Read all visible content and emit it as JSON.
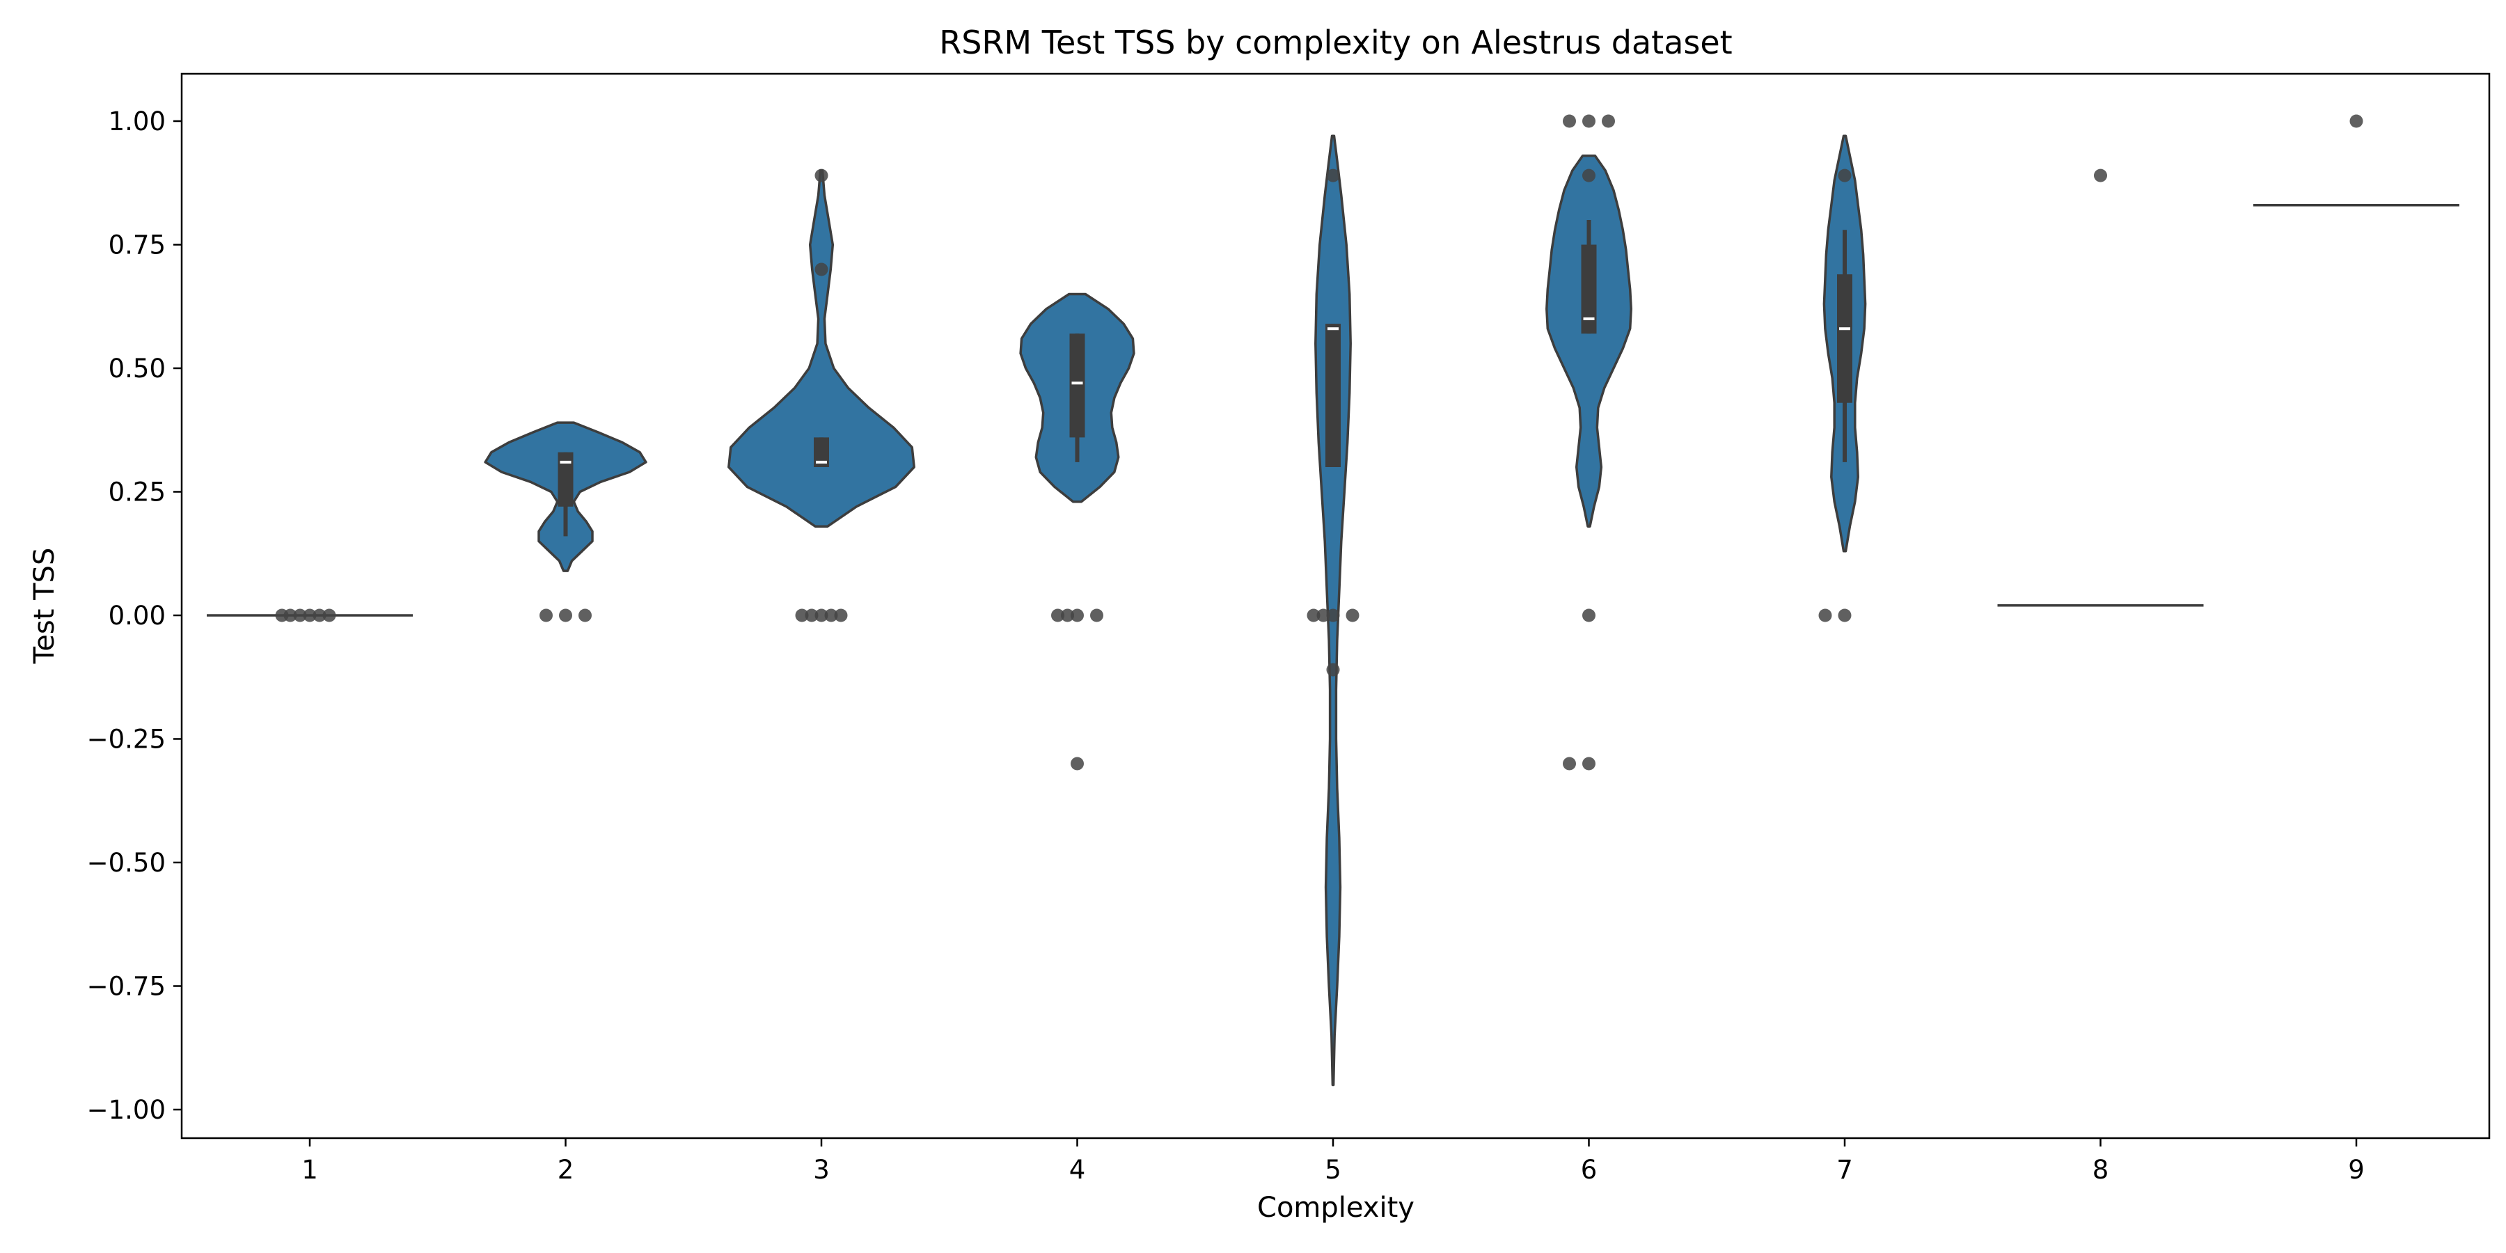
{
  "chart_data": {
    "type": "violin",
    "title": "RSRM Test TSS by complexity on Alestrus dataset",
    "xlabel": "Complexity",
    "ylabel": "Test TSS",
    "ylim": [
      -1.05,
      1.1
    ],
    "yticks": [
      1.0,
      0.75,
      0.5,
      0.25,
      0.0,
      -0.25,
      -0.5,
      -0.75,
      -1.0
    ],
    "ytick_labels": [
      "1.00",
      "0.75",
      "0.50",
      "0.25",
      "0.00",
      "−0.25",
      "−0.50",
      "−0.75",
      "−1.00"
    ],
    "categories": [
      "1",
      "2",
      "3",
      "4",
      "5",
      "6",
      "7",
      "8",
      "9"
    ],
    "grid": false,
    "colors": {
      "violin": "#3274a1",
      "outline": "#3d3d3d",
      "box": "#3d3d3d",
      "median": "#ffffff",
      "point": "#444444"
    },
    "groups": [
      {
        "category": "1",
        "flat": 0.0,
        "points": [
          0.0,
          0.0,
          0.0,
          0.0,
          0.0,
          0.0
        ]
      },
      {
        "category": "2",
        "range": [
          0.09,
          0.39
        ],
        "shape": [
          [
            0.09,
            0.02
          ],
          [
            0.11,
            0.06
          ],
          [
            0.13,
            0.16
          ],
          [
            0.15,
            0.26
          ],
          [
            0.17,
            0.26
          ],
          [
            0.19,
            0.2
          ],
          [
            0.21,
            0.12
          ],
          [
            0.23,
            0.08
          ],
          [
            0.25,
            0.14
          ],
          [
            0.27,
            0.34
          ],
          [
            0.29,
            0.62
          ],
          [
            0.31,
            0.78
          ],
          [
            0.33,
            0.72
          ],
          [
            0.35,
            0.55
          ],
          [
            0.37,
            0.32
          ],
          [
            0.39,
            0.08
          ]
        ],
        "box": [
          0.22,
          0.33
        ],
        "whisker": [
          0.16,
          0.33
        ],
        "median": 0.31,
        "points": [
          0.0,
          0.0,
          0.0
        ]
      },
      {
        "category": "3",
        "range": [
          0.18,
          0.9
        ],
        "shape": [
          [
            0.18,
            0.06
          ],
          [
            0.22,
            0.34
          ],
          [
            0.26,
            0.72
          ],
          [
            0.3,
            0.9
          ],
          [
            0.34,
            0.88
          ],
          [
            0.38,
            0.7
          ],
          [
            0.42,
            0.46
          ],
          [
            0.46,
            0.26
          ],
          [
            0.5,
            0.12
          ],
          [
            0.55,
            0.04
          ],
          [
            0.6,
            0.03
          ],
          [
            0.65,
            0.06
          ],
          [
            0.7,
            0.09
          ],
          [
            0.75,
            0.11
          ],
          [
            0.8,
            0.07
          ],
          [
            0.85,
            0.03
          ],
          [
            0.9,
            0.01
          ]
        ],
        "box": [
          0.3,
          0.36
        ],
        "whisker": [
          0.3,
          0.36
        ],
        "median": 0.31,
        "points": [
          0.89,
          0.7,
          0.0,
          0.0,
          0.0,
          0.0,
          0.0
        ]
      },
      {
        "category": "4",
        "range": [
          0.23,
          0.65
        ],
        "shape": [
          [
            0.23,
            0.04
          ],
          [
            0.26,
            0.22
          ],
          [
            0.29,
            0.36
          ],
          [
            0.32,
            0.4
          ],
          [
            0.35,
            0.38
          ],
          [
            0.38,
            0.34
          ],
          [
            0.41,
            0.33
          ],
          [
            0.44,
            0.36
          ],
          [
            0.47,
            0.42
          ],
          [
            0.5,
            0.5
          ],
          [
            0.53,
            0.55
          ],
          [
            0.56,
            0.54
          ],
          [
            0.59,
            0.45
          ],
          [
            0.62,
            0.3
          ],
          [
            0.65,
            0.08
          ]
        ],
        "box": [
          0.36,
          0.57
        ],
        "whisker": [
          0.31,
          0.57
        ],
        "median": 0.47,
        "points": [
          0.0,
          0.0,
          0.0,
          0.0,
          -0.3
        ]
      },
      {
        "category": "5",
        "range": [
          -0.95,
          0.97
        ],
        "shape": [
          [
            -0.95,
            0.004
          ],
          [
            -0.85,
            0.015
          ],
          [
            -0.75,
            0.04
          ],
          [
            -0.65,
            0.06
          ],
          [
            -0.55,
            0.07
          ],
          [
            -0.45,
            0.06
          ],
          [
            -0.35,
            0.04
          ],
          [
            -0.25,
            0.03
          ],
          [
            -0.15,
            0.03
          ],
          [
            -0.05,
            0.04
          ],
          [
            0.05,
            0.06
          ],
          [
            0.15,
            0.08
          ],
          [
            0.25,
            0.11
          ],
          [
            0.35,
            0.14
          ],
          [
            0.45,
            0.16
          ],
          [
            0.55,
            0.17
          ],
          [
            0.65,
            0.16
          ],
          [
            0.75,
            0.13
          ],
          [
            0.85,
            0.08
          ],
          [
            0.92,
            0.04
          ],
          [
            0.97,
            0.01
          ]
        ],
        "box": [
          0.3,
          0.59
        ],
        "whisker": [
          0.3,
          0.59
        ],
        "median": 0.58,
        "points": [
          0.89,
          0.0,
          0.0,
          0.0,
          0.0,
          -0.11
        ]
      },
      {
        "category": "6",
        "range": [
          0.18,
          0.93
        ],
        "shape": [
          [
            0.18,
            0.01
          ],
          [
            0.22,
            0.05
          ],
          [
            0.26,
            0.1
          ],
          [
            0.3,
            0.12
          ],
          [
            0.34,
            0.1
          ],
          [
            0.38,
            0.08
          ],
          [
            0.42,
            0.09
          ],
          [
            0.46,
            0.15
          ],
          [
            0.5,
            0.24
          ],
          [
            0.54,
            0.33
          ],
          [
            0.58,
            0.4
          ],
          [
            0.62,
            0.41
          ],
          [
            0.66,
            0.4
          ],
          [
            0.7,
            0.38
          ],
          [
            0.74,
            0.36
          ],
          [
            0.78,
            0.33
          ],
          [
            0.82,
            0.29
          ],
          [
            0.86,
            0.24
          ],
          [
            0.9,
            0.16
          ],
          [
            0.93,
            0.06
          ]
        ],
        "box": [
          0.57,
          0.75
        ],
        "whisker": [
          0.57,
          0.8
        ],
        "median": 0.6,
        "points": [
          1.0,
          1.0,
          1.0,
          0.89,
          0.0,
          -0.3,
          -0.3
        ]
      },
      {
        "category": "7",
        "range": [
          0.13,
          0.97
        ],
        "shape": [
          [
            0.13,
            0.01
          ],
          [
            0.18,
            0.05
          ],
          [
            0.23,
            0.1
          ],
          [
            0.28,
            0.13
          ],
          [
            0.33,
            0.12
          ],
          [
            0.38,
            0.1
          ],
          [
            0.43,
            0.1
          ],
          [
            0.48,
            0.12
          ],
          [
            0.53,
            0.16
          ],
          [
            0.58,
            0.19
          ],
          [
            0.63,
            0.2
          ],
          [
            0.68,
            0.19
          ],
          [
            0.73,
            0.18
          ],
          [
            0.78,
            0.16
          ],
          [
            0.83,
            0.13
          ],
          [
            0.88,
            0.1
          ],
          [
            0.93,
            0.05
          ],
          [
            0.97,
            0.01
          ]
        ],
        "box": [
          0.43,
          0.69
        ],
        "whisker": [
          0.31,
          0.78
        ],
        "median": 0.58,
        "points": [
          0.89,
          0.0,
          0.0
        ]
      },
      {
        "category": "8",
        "flat": 0.02,
        "points": [
          0.89
        ]
      },
      {
        "category": "9",
        "flat": 0.83,
        "points": [
          1.0
        ]
      }
    ]
  }
}
